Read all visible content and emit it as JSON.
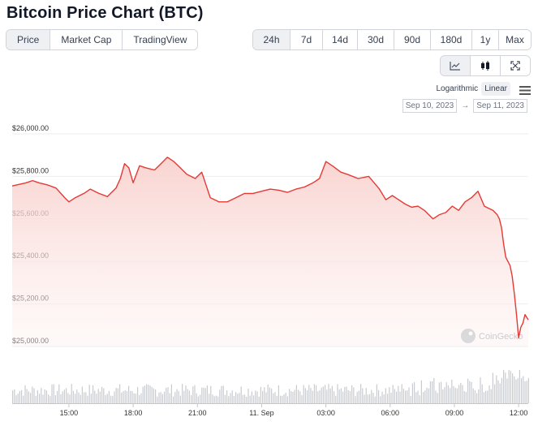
{
  "title": "Bitcoin Price Chart (BTC)",
  "view_tabs": [
    {
      "label": "Price",
      "active": true
    },
    {
      "label": "Market Cap",
      "active": false
    },
    {
      "label": "TradingView",
      "active": false
    }
  ],
  "time_ranges": [
    {
      "label": "24h",
      "active": true
    },
    {
      "label": "7d",
      "active": false
    },
    {
      "label": "14d",
      "active": false
    },
    {
      "label": "30d",
      "active": false
    },
    {
      "label": "90d",
      "active": false
    },
    {
      "label": "180d",
      "active": false
    },
    {
      "label": "1y",
      "active": false
    },
    {
      "label": "Max",
      "active": false
    }
  ],
  "chart_types": [
    {
      "icon": "line-chart-icon",
      "active": true
    },
    {
      "icon": "candlestick-icon",
      "active": false
    },
    {
      "icon": "expand-icon",
      "active": false
    }
  ],
  "scale_options": {
    "logarithmic": "Logarithmic",
    "linear": "Linear",
    "selected": "Linear"
  },
  "date_range": {
    "from": "Sep 10, 2023",
    "to": "Sep 11, 2023",
    "separator": "→"
  },
  "watermark": "CoinGecko",
  "colors": {
    "line": "#e53935",
    "area_top": "#f9d3d0",
    "volume": "#c8cbd0",
    "grid": "#eeeeee"
  },
  "chart_data": {
    "type": "area",
    "y_axis": {
      "min": 25000,
      "max": 26000,
      "ticks": [
        "$25,000.00",
        "$25,200.00",
        "$25,400.00",
        "$25,600.00",
        "$25,800.00",
        "$26,000.00"
      ]
    },
    "x_axis": {
      "ticks": [
        "15:00",
        "18:00",
        "21:00",
        "11. Sep",
        "03:00",
        "06:00",
        "09:00",
        "12:00"
      ],
      "tick_hours": [
        2,
        5,
        8,
        11,
        14,
        17,
        20,
        23
      ]
    },
    "x_range_hours": [
      -0.65,
      23.45
    ],
    "series": [
      {
        "x": [
          -0.65,
          0.0,
          0.3,
          0.6,
          1.0,
          1.4,
          1.8,
          2.0,
          2.3,
          2.7,
          3.0,
          3.4,
          3.8,
          4.2,
          4.4,
          4.6,
          4.8,
          5.0,
          5.3,
          5.6,
          6.0,
          6.3,
          6.6,
          6.9,
          7.2,
          7.5,
          7.9,
          8.2,
          8.6,
          9.0,
          9.4,
          9.8,
          10.2,
          10.6,
          11.0,
          11.4,
          11.8,
          12.2,
          12.6,
          13.0,
          13.4,
          13.7,
          14.0,
          14.3,
          14.7,
          15.0,
          15.5,
          16.0,
          16.5,
          16.8,
          17.1,
          17.4,
          17.7,
          18.0,
          18.3,
          18.6,
          19.0,
          19.3,
          19.6,
          19.9,
          20.2,
          20.5,
          20.8,
          21.1,
          21.4,
          21.6,
          21.8,
          22.0,
          22.1,
          22.2,
          22.3,
          22.4,
          22.5,
          22.6,
          22.7,
          22.8,
          22.9,
          23.0,
          23.1,
          23.2,
          23.3,
          23.45
        ],
        "y": [
          25755,
          25770,
          25780,
          25770,
          25760,
          25745,
          25700,
          25680,
          25700,
          25720,
          25740,
          25720,
          25705,
          25745,
          25790,
          25860,
          25840,
          25770,
          25850,
          25840,
          25830,
          25860,
          25890,
          25870,
          25840,
          25810,
          25790,
          25820,
          25700,
          25680,
          25680,
          25700,
          25720,
          25720,
          25730,
          25740,
          25735,
          25725,
          25740,
          25750,
          25770,
          25790,
          25870,
          25850,
          25820,
          25810,
          25790,
          25800,
          25740,
          25690,
          25710,
          25690,
          25670,
          25655,
          25660,
          25640,
          25600,
          25620,
          25630,
          25660,
          25640,
          25680,
          25700,
          25730,
          25660,
          25650,
          25640,
          25620,
          25600,
          25560,
          25480,
          25420,
          25400,
          25380,
          25330,
          25250,
          25150,
          25040,
          25090,
          25110,
          25150,
          25125
        ]
      }
    ],
    "volume_visible": true,
    "grid": true,
    "legend": "none"
  }
}
